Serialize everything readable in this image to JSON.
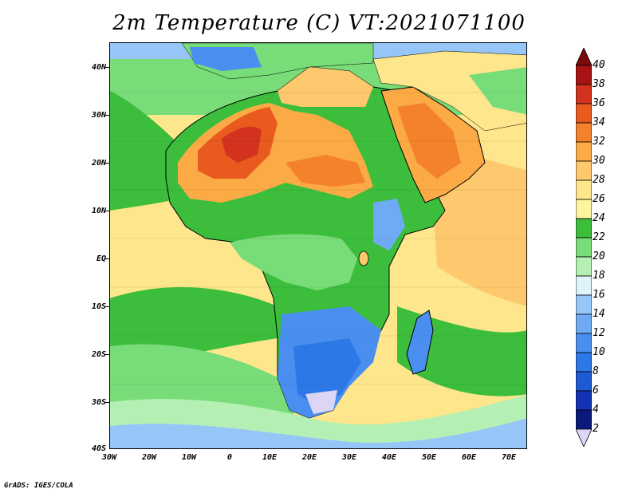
{
  "title": "2m Temperature (C) VT:2021071100",
  "footer": "GrADS: IGES/COLA",
  "lat_labels": [
    "40N",
    "30N",
    "20N",
    "10N",
    "EQ",
    "10S",
    "20S",
    "30S",
    "40S"
  ],
  "lon_labels": [
    "30W",
    "20W",
    "10W",
    "0",
    "10E",
    "20E",
    "30E",
    "40E",
    "50E",
    "60E",
    "70E"
  ],
  "colorbar": {
    "levels": [
      "2",
      "4",
      "6",
      "8",
      "10",
      "12",
      "14",
      "16",
      "18",
      "20",
      "22",
      "24",
      "26",
      "28",
      "30",
      "32",
      "34",
      "36",
      "38",
      "40"
    ],
    "colors": [
      "#dcd5f5",
      "#0a1a7a",
      "#1432b4",
      "#1e5ad2",
      "#2c78e6",
      "#4a8ff0",
      "#6faaf4",
      "#96c6f8",
      "#dff4fa",
      "#b4f0b4",
      "#78dc78",
      "#3cbe3c",
      "#fdf5a0",
      "#fde68c",
      "#fdc86e",
      "#fbaa46",
      "#f4822c",
      "#e85a1e",
      "#d2321e",
      "#a81414",
      "#7a0a0a"
    ]
  },
  "colors": {
    "ocean_tropical": "#fdc86e",
    "ocean_warm": "#fde68c",
    "ocean_mid": "#3cbe3c",
    "ocean_south": "#78dc78",
    "ocean_cold": "#96c6f8"
  }
}
